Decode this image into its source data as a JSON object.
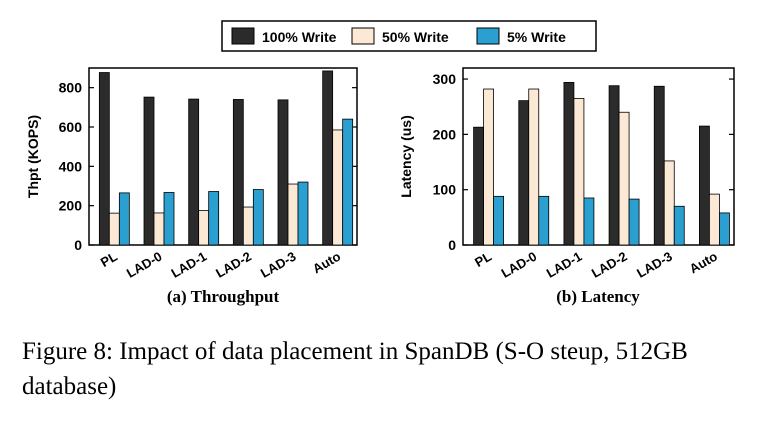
{
  "legend": [
    {
      "label": "100% Write",
      "color": "#2b2b2b"
    },
    {
      "label": "50% Write",
      "color": "#fbe9d6"
    },
    {
      "label": "5% Write",
      "color": "#2a9fd0"
    }
  ],
  "chart_data": [
    {
      "type": "bar",
      "title": "(a) Throughput",
      "ylabel": "Thpt (KOPS)",
      "xlabel": "",
      "categories": [
        "PL",
        "LAD-0",
        "LAD-1",
        "LAD-2",
        "LAD-3",
        "Auto"
      ],
      "ylim": [
        0,
        900
      ],
      "yticks": [
        0,
        200,
        400,
        600,
        800
      ],
      "grid": false,
      "legend_position": "top (shared)",
      "series": [
        {
          "name": "100% Write",
          "values": [
            877,
            752,
            742,
            740,
            738,
            885
          ]
        },
        {
          "name": "50% Write",
          "values": [
            162,
            163,
            175,
            193,
            310,
            585
          ]
        },
        {
          "name": "5% Write",
          "values": [
            265,
            267,
            272,
            282,
            320,
            640
          ]
        }
      ]
    },
    {
      "type": "bar",
      "title": "(b) Latency",
      "ylabel": "Latency (us)",
      "xlabel": "",
      "categories": [
        "PL",
        "LAD-0",
        "LAD-1",
        "LAD-2",
        "LAD-3",
        "Auto"
      ],
      "ylim": [
        0,
        320
      ],
      "yticks": [
        0,
        100,
        200,
        300
      ],
      "grid": false,
      "legend_position": "top (shared)",
      "series": [
        {
          "name": "100% Write",
          "values": [
            213,
            261,
            294,
            288,
            287,
            215
          ]
        },
        {
          "name": "50% Write",
          "values": [
            282,
            282,
            265,
            240,
            152,
            92
          ]
        },
        {
          "name": "5% Write",
          "values": [
            88,
            88,
            85,
            83,
            70,
            58
          ]
        }
      ]
    }
  ],
  "caption": "Figure 8: Impact of data placement in SpanDB (S-O steup, 512GB database)"
}
